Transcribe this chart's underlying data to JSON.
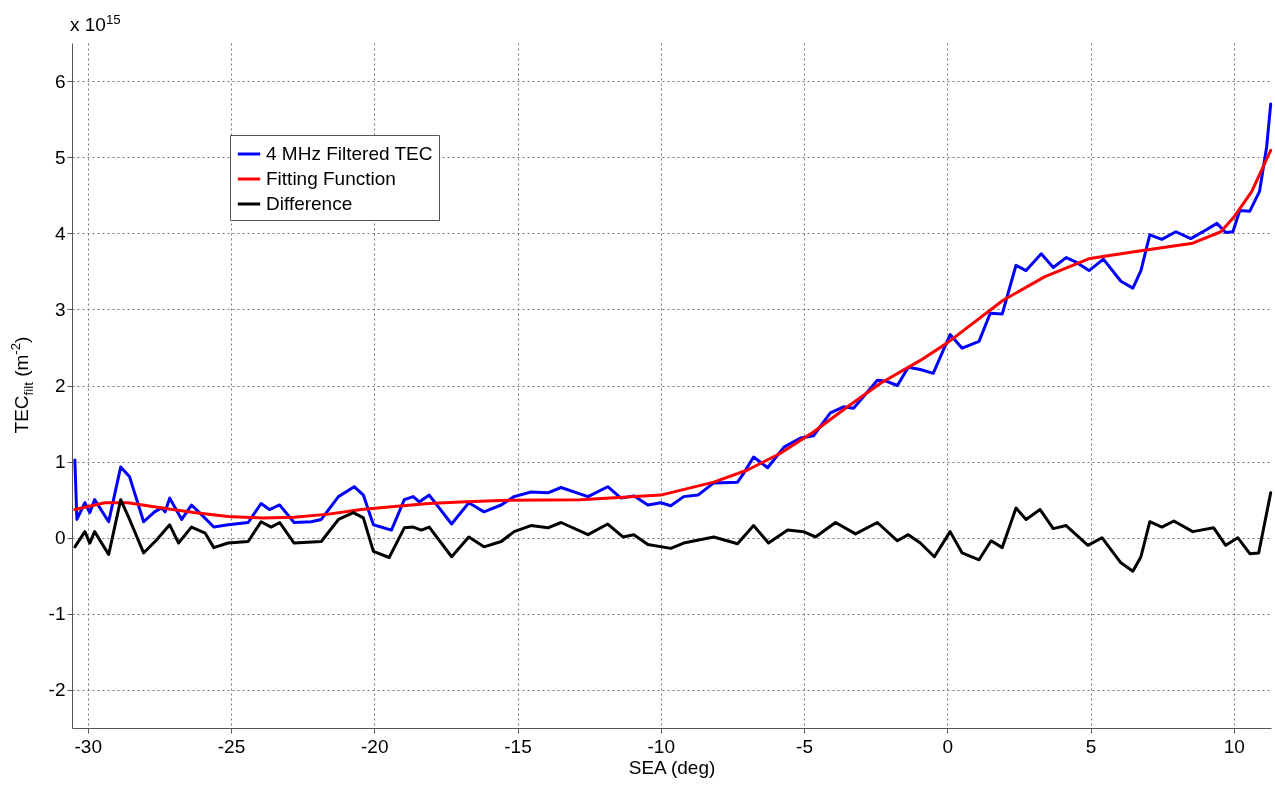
{
  "chart_data": {
    "type": "line",
    "xlabel": "SEA (deg)",
    "ylabel": "TEC$_{filt}$  (m$^{-2}$)",
    "annotations": [
      "x 10$^{15}$"
    ],
    "xlim": [
      -30.55,
      11.3
    ],
    "ylim": [
      -2.5,
      6.5
    ],
    "xticks": [
      -30,
      -25,
      -20,
      -15,
      -10,
      -5,
      0,
      5,
      10
    ],
    "yticks": [
      -2,
      -1,
      0,
      1,
      2,
      3,
      4,
      5,
      6
    ],
    "grid": true,
    "legend": "top left",
    "line_style": "solid",
    "series": [
      {
        "name": "4 MHz Filtered TEC",
        "color": "#0000ff",
        "x": [
          -30.45,
          -30.38,
          -30.1,
          -29.93,
          -29.76,
          -29.27,
          -28.85,
          -28.54,
          -28.05,
          -27.67,
          -27.42,
          -27.3,
          -27.14,
          -26.72,
          -26.38,
          -26.1,
          -25.6,
          -25.1,
          -24.4,
          -23.95,
          -23.66,
          -23.3,
          -22.8,
          -22.2,
          -21.85,
          -21.25,
          -20.7,
          -20.38,
          -20.03,
          -19.4,
          -18.95,
          -18.64,
          -18.43,
          -18.08,
          -17.3,
          -16.7,
          -16.17,
          -15.57,
          -15.12,
          -14.53,
          -13.94,
          -13.48,
          -12.54,
          -11.85,
          -11.39,
          -10.94,
          -10.45,
          -10.0,
          -9.65,
          -9.2,
          -8.7,
          -8.15,
          -7.32,
          -7.1,
          -6.76,
          -6.27,
          -5.7,
          -5.12,
          -4.67,
          -4.08,
          -3.62,
          -3.27,
          -2.44,
          -2.16,
          -1.74,
          -1.36,
          -0.94,
          -0.49,
          0.1,
          0.52,
          1.11,
          1.5,
          1.92,
          2.4,
          2.75,
          3.28,
          3.7,
          4.15,
          4.5,
          4.95,
          5.45,
          6.06,
          6.48,
          6.76,
          7.07,
          7.49,
          7.98,
          8.5,
          9.06,
          9.41,
          9.72,
          9.97,
          10.21,
          10.56,
          10.9,
          11.15,
          11.29
        ],
        "values": [
          1.02,
          0.24,
          0.46,
          0.33,
          0.5,
          0.21,
          0.93,
          0.8,
          0.21,
          0.34,
          0.39,
          0.34,
          0.52,
          0.24,
          0.43,
          0.33,
          0.14,
          0.17,
          0.2,
          0.45,
          0.37,
          0.43,
          0.2,
          0.21,
          0.24,
          0.54,
          0.67,
          0.56,
          0.17,
          0.1,
          0.5,
          0.54,
          0.47,
          0.56,
          0.18,
          0.46,
          0.34,
          0.43,
          0.54,
          0.6,
          0.59,
          0.66,
          0.54,
          0.67,
          0.52,
          0.55,
          0.43,
          0.46,
          0.42,
          0.54,
          0.56,
          0.72,
          0.73,
          0.85,
          1.06,
          0.92,
          1.19,
          1.31,
          1.34,
          1.64,
          1.72,
          1.7,
          2.07,
          2.06,
          2.0,
          2.24,
          2.21,
          2.16,
          2.67,
          2.49,
          2.58,
          2.95,
          2.94,
          3.58,
          3.51,
          3.73,
          3.55,
          3.68,
          3.62,
          3.51,
          3.66,
          3.37,
          3.28,
          3.51,
          3.98,
          3.92,
          4.02,
          3.93,
          4.05,
          4.13,
          4.01,
          4.02,
          4.3,
          4.29,
          4.55,
          5.14,
          5.7
        ]
      },
      {
        "name": "Fitting Function",
        "color": "#ff0000",
        "x": [
          -30.45,
          -29.4,
          -28.6,
          -27.4,
          -26.3,
          -25.1,
          -23.9,
          -22.8,
          -21.6,
          -20.45,
          -19.3,
          -18.1,
          -17.0,
          -15.6,
          -12.8,
          -10.0,
          -8.15,
          -6.97,
          -5.82,
          -4.67,
          -3.48,
          -2.33,
          -0.94,
          0.0,
          1.95,
          3.41,
          4.98,
          6.76,
          8.57,
          9.55,
          10.0,
          10.63,
          11.29
        ],
        "values": [
          0.37,
          0.46,
          0.46,
          0.39,
          0.33,
          0.28,
          0.26,
          0.27,
          0.31,
          0.37,
          0.41,
          0.45,
          0.47,
          0.49,
          0.5,
          0.56,
          0.73,
          0.89,
          1.11,
          1.39,
          1.72,
          2.03,
          2.33,
          2.56,
          3.12,
          3.43,
          3.67,
          3.77,
          3.87,
          4.02,
          4.21,
          4.55,
          5.09
        ]
      },
      {
        "name": "Difference",
        "color": "#000000",
        "x": [
          -30.45,
          -30.1,
          -29.93,
          -29.76,
          -29.27,
          -28.85,
          -28.54,
          -28.05,
          -27.6,
          -27.14,
          -26.83,
          -26.38,
          -25.9,
          -25.6,
          -25.1,
          -24.4,
          -23.95,
          -23.6,
          -23.3,
          -22.8,
          -21.85,
          -21.25,
          -20.73,
          -20.38,
          -20.03,
          -19.48,
          -18.95,
          -18.64,
          -18.36,
          -18.08,
          -17.3,
          -16.7,
          -16.17,
          -15.57,
          -15.12,
          -14.53,
          -13.94,
          -13.48,
          -12.54,
          -11.85,
          -11.32,
          -10.94,
          -10.45,
          -9.65,
          -9.2,
          -8.15,
          -7.32,
          -6.76,
          -6.24,
          -5.57,
          -5.02,
          -4.6,
          -3.9,
          -3.2,
          -2.44,
          -1.74,
          -1.36,
          -0.94,
          -0.45,
          0.1,
          0.52,
          1.11,
          1.53,
          1.92,
          2.4,
          2.75,
          3.24,
          3.7,
          4.15,
          4.91,
          5.4,
          6.06,
          6.48,
          6.76,
          7.07,
          7.49,
          7.91,
          8.57,
          9.3,
          9.72,
          10.14,
          10.56,
          10.87,
          11.29
        ],
        "values": [
          -0.12,
          0.08,
          -0.07,
          0.08,
          -0.22,
          0.5,
          0.24,
          -0.2,
          -0.03,
          0.17,
          -0.07,
          0.14,
          0.06,
          -0.13,
          -0.07,
          -0.05,
          0.21,
          0.14,
          0.2,
          -0.07,
          -0.05,
          0.24,
          0.33,
          0.26,
          -0.18,
          -0.26,
          0.13,
          0.14,
          0.1,
          0.14,
          -0.25,
          0.01,
          -0.12,
          -0.05,
          0.08,
          0.16,
          0.13,
          0.2,
          0.04,
          0.18,
          0.01,
          0.04,
          -0.09,
          -0.14,
          -0.07,
          0.01,
          -0.08,
          0.16,
          -0.07,
          0.1,
          0.08,
          0.01,
          0.2,
          0.05,
          0.2,
          -0.04,
          0.04,
          -0.07,
          -0.25,
          0.08,
          -0.2,
          -0.29,
          -0.04,
          -0.13,
          0.39,
          0.24,
          0.37,
          0.12,
          0.16,
          -0.1,
          0.0,
          -0.33,
          -0.44,
          -0.25,
          0.21,
          0.14,
          0.22,
          0.08,
          0.13,
          -0.1,
          0.0,
          -0.21,
          -0.2,
          0.59
        ]
      }
    ]
  }
}
